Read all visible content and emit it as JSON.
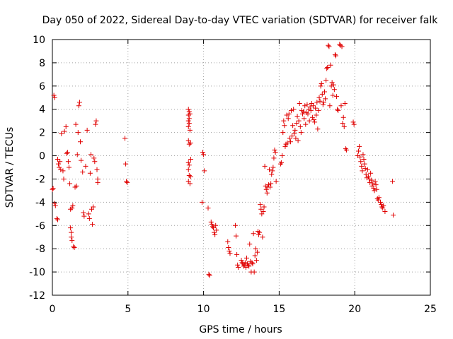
{
  "chart_data": {
    "type": "scatter",
    "title": "Day 050 of 2022, Sidereal Day-to-day VTEC variation (SDTVAR) for receiver falk",
    "xlabel": "GPS time / hours",
    "ylabel": "SDTVAR / TECUs",
    "xlim": [
      0,
      25
    ],
    "ylim": [
      -12,
      10
    ],
    "xticks": [
      0,
      5,
      10,
      15,
      20,
      25
    ],
    "yticks": [
      -12,
      -10,
      -8,
      -6,
      -4,
      -2,
      0,
      2,
      4,
      6,
      8,
      10
    ],
    "grid": true,
    "marker": "plus",
    "color": "#e00000",
    "series": [
      {
        "name": "SDTVAR",
        "points": [
          [
            0.0,
            -2.9
          ],
          [
            0.05,
            -2.8
          ],
          [
            0.1,
            5.2
          ],
          [
            0.15,
            5.0
          ],
          [
            0.15,
            -4.1
          ],
          [
            0.2,
            -4.3
          ],
          [
            0.3,
            -5.4
          ],
          [
            0.35,
            -5.5
          ],
          [
            0.35,
            -0.3
          ],
          [
            0.4,
            -0.7
          ],
          [
            0.45,
            -1.0
          ],
          [
            0.5,
            -0.5
          ],
          [
            0.55,
            -1.2
          ],
          [
            0.6,
            1.9
          ],
          [
            0.7,
            -1.3
          ],
          [
            0.75,
            -2.0
          ],
          [
            0.8,
            2.1
          ],
          [
            0.9,
            2.5
          ],
          [
            0.95,
            0.2
          ],
          [
            1.0,
            0.3
          ],
          [
            1.05,
            -0.5
          ],
          [
            1.1,
            -1.0
          ],
          [
            1.15,
            -2.4
          ],
          [
            1.2,
            -4.6
          ],
          [
            1.2,
            -6.2
          ],
          [
            1.25,
            -6.6
          ],
          [
            1.25,
            -7.0
          ],
          [
            1.3,
            -7.3
          ],
          [
            1.3,
            -4.5
          ],
          [
            1.35,
            -4.3
          ],
          [
            1.4,
            -7.8
          ],
          [
            1.45,
            -7.9
          ],
          [
            1.5,
            -2.7
          ],
          [
            1.55,
            2.7
          ],
          [
            1.6,
            -2.6
          ],
          [
            1.65,
            0.1
          ],
          [
            1.7,
            2.0
          ],
          [
            1.75,
            4.3
          ],
          [
            1.8,
            4.6
          ],
          [
            1.85,
            1.2
          ],
          [
            1.9,
            -0.4
          ],
          [
            2.0,
            -1.4
          ],
          [
            2.05,
            -4.9
          ],
          [
            2.1,
            -5.2
          ],
          [
            2.2,
            -0.9
          ],
          [
            2.3,
            2.2
          ],
          [
            2.4,
            -5.0
          ],
          [
            2.45,
            -5.4
          ],
          [
            2.5,
            -1.5
          ],
          [
            2.55,
            0.1
          ],
          [
            2.6,
            -4.6
          ],
          [
            2.65,
            -5.9
          ],
          [
            2.7,
            -4.4
          ],
          [
            2.75,
            -0.2
          ],
          [
            2.8,
            -0.5
          ],
          [
            2.85,
            2.7
          ],
          [
            2.9,
            3.0
          ],
          [
            2.95,
            -1.2
          ],
          [
            3.0,
            -2.3
          ],
          [
            3.0,
            -2.0
          ],
          [
            4.8,
            1.5
          ],
          [
            4.85,
            -0.7
          ],
          [
            4.9,
            -2.2
          ],
          [
            4.95,
            -2.3
          ],
          [
            9.0,
            4.0
          ],
          [
            9.0,
            3.5
          ],
          [
            9.0,
            3.0
          ],
          [
            9.0,
            2.5
          ],
          [
            9.0,
            1.3
          ],
          [
            9.0,
            -0.6
          ],
          [
            9.0,
            -1.2
          ],
          [
            9.0,
            -2.2
          ],
          [
            9.05,
            3.8
          ],
          [
            9.05,
            3.2
          ],
          [
            9.05,
            2.8
          ],
          [
            9.05,
            1.0
          ],
          [
            9.05,
            -0.8
          ],
          [
            9.05,
            -1.7
          ],
          [
            9.1,
            3.6
          ],
          [
            9.1,
            2.2
          ],
          [
            9.1,
            -2.4
          ],
          [
            9.15,
            1.1
          ],
          [
            9.15,
            -0.3
          ],
          [
            9.15,
            -1.8
          ],
          [
            9.9,
            -4.0
          ],
          [
            9.95,
            0.3
          ],
          [
            10.0,
            0.1
          ],
          [
            10.05,
            -1.3
          ],
          [
            10.3,
            -4.5
          ],
          [
            10.35,
            -10.2
          ],
          [
            10.4,
            -10.3
          ],
          [
            10.5,
            -5.7
          ],
          [
            10.55,
            -5.9
          ],
          [
            10.6,
            -6.1
          ],
          [
            10.65,
            -6.2
          ],
          [
            10.7,
            -6.6
          ],
          [
            10.75,
            -6.8
          ],
          [
            10.8,
            -6.0
          ],
          [
            10.85,
            -6.4
          ],
          [
            11.6,
            -7.4
          ],
          [
            11.65,
            -7.9
          ],
          [
            11.7,
            -8.2
          ],
          [
            11.75,
            -8.4
          ],
          [
            12.1,
            -6.0
          ],
          [
            12.15,
            -6.9
          ],
          [
            12.2,
            -8.5
          ],
          [
            12.25,
            -9.4
          ],
          [
            12.3,
            -9.6
          ],
          [
            12.5,
            -9.0
          ],
          [
            12.55,
            -9.2
          ],
          [
            12.6,
            -9.3
          ],
          [
            12.65,
            -9.5
          ],
          [
            12.7,
            -9.4
          ],
          [
            12.75,
            -9.2
          ],
          [
            12.8,
            -9.6
          ],
          [
            12.85,
            -8.8
          ],
          [
            12.9,
            -9.3
          ],
          [
            12.95,
            -9.4
          ],
          [
            13.0,
            -9.5
          ],
          [
            13.05,
            -7.6
          ],
          [
            13.1,
            -9.1
          ],
          [
            13.15,
            -10.0
          ],
          [
            13.2,
            -9.2
          ],
          [
            13.25,
            -9.3
          ],
          [
            13.3,
            -6.7
          ],
          [
            13.35,
            -10.0
          ],
          [
            13.4,
            -8.6
          ],
          [
            13.45,
            -8.0
          ],
          [
            13.5,
            -9.0
          ],
          [
            13.55,
            -8.3
          ],
          [
            13.6,
            -6.5
          ],
          [
            13.65,
            -6.8
          ],
          [
            13.7,
            -6.6
          ],
          [
            13.75,
            -4.2
          ],
          [
            13.8,
            -4.6
          ],
          [
            13.85,
            -5.0
          ],
          [
            13.9,
            -7.0
          ],
          [
            13.95,
            -4.8
          ],
          [
            14.0,
            -4.4
          ],
          [
            14.05,
            -0.9
          ],
          [
            14.1,
            -2.6
          ],
          [
            14.15,
            -2.9
          ],
          [
            14.2,
            -3.2
          ],
          [
            14.25,
            -2.7
          ],
          [
            14.3,
            -2.5
          ],
          [
            14.35,
            -1.2
          ],
          [
            14.4,
            -2.7
          ],
          [
            14.45,
            -2.4
          ],
          [
            14.5,
            -1.6
          ],
          [
            14.55,
            -1.3
          ],
          [
            14.6,
            -1.0
          ],
          [
            14.65,
            -0.2
          ],
          [
            14.7,
            0.5
          ],
          [
            14.75,
            0.3
          ],
          [
            14.8,
            -2.2
          ],
          [
            15.1,
            -0.7
          ],
          [
            15.15,
            -0.6
          ],
          [
            15.2,
            0.0
          ],
          [
            15.25,
            2.0
          ],
          [
            15.3,
            3.0
          ],
          [
            15.35,
            2.6
          ],
          [
            15.4,
            0.8
          ],
          [
            15.45,
            1.0
          ],
          [
            15.5,
            3.5
          ],
          [
            15.55,
            1.1
          ],
          [
            15.6,
            3.2
          ],
          [
            15.65,
            3.6
          ],
          [
            15.7,
            1.5
          ],
          [
            15.75,
            1.2
          ],
          [
            15.8,
            3.9
          ],
          [
            15.85,
            1.7
          ],
          [
            15.9,
            2.6
          ],
          [
            15.95,
            4.0
          ],
          [
            16.0,
            1.9
          ],
          [
            16.05,
            2.2
          ],
          [
            16.1,
            1.5
          ],
          [
            16.15,
            2.8
          ],
          [
            16.2,
            3.4
          ],
          [
            16.25,
            1.3
          ],
          [
            16.3,
            3.0
          ],
          [
            16.35,
            4.5
          ],
          [
            16.4,
            2.5
          ],
          [
            16.45,
            2.0
          ],
          [
            16.5,
            3.9
          ],
          [
            16.55,
            3.6
          ],
          [
            16.6,
            3.8
          ],
          [
            16.65,
            3.2
          ],
          [
            16.7,
            4.3
          ],
          [
            16.75,
            2.7
          ],
          [
            16.8,
            3.7
          ],
          [
            16.85,
            4.4
          ],
          [
            16.9,
            3.6
          ],
          [
            16.95,
            4.0
          ],
          [
            17.0,
            3.0
          ],
          [
            17.05,
            4.2
          ],
          [
            17.1,
            3.9
          ],
          [
            17.15,
            4.5
          ],
          [
            17.2,
            3.3
          ],
          [
            17.25,
            4.3
          ],
          [
            17.3,
            3.1
          ],
          [
            17.35,
            2.9
          ],
          [
            17.4,
            4.1
          ],
          [
            17.45,
            3.5
          ],
          [
            17.5,
            4.6
          ],
          [
            17.55,
            2.3
          ],
          [
            17.6,
            3.9
          ],
          [
            17.65,
            5.0
          ],
          [
            17.7,
            4.7
          ],
          [
            17.75,
            6.0
          ],
          [
            17.8,
            6.2
          ],
          [
            17.85,
            5.3
          ],
          [
            17.9,
            4.4
          ],
          [
            17.95,
            4.6
          ],
          [
            18.0,
            5.5
          ],
          [
            18.05,
            4.9
          ],
          [
            18.1,
            6.5
          ],
          [
            18.15,
            7.5
          ],
          [
            18.2,
            7.6
          ],
          [
            18.25,
            9.5
          ],
          [
            18.3,
            9.4
          ],
          [
            18.35,
            4.3
          ],
          [
            18.4,
            7.8
          ],
          [
            18.45,
            6.0
          ],
          [
            18.5,
            6.3
          ],
          [
            18.55,
            5.2
          ],
          [
            18.6,
            6.1
          ],
          [
            18.65,
            5.7
          ],
          [
            18.7,
            8.7
          ],
          [
            18.75,
            8.6
          ],
          [
            18.8,
            5.1
          ],
          [
            18.85,
            4.0
          ],
          [
            18.9,
            3.9
          ],
          [
            19.0,
            9.6
          ],
          [
            19.05,
            9.5
          ],
          [
            19.1,
            4.3
          ],
          [
            19.15,
            9.4
          ],
          [
            19.2,
            2.8
          ],
          [
            19.25,
            3.3
          ],
          [
            19.3,
            2.5
          ],
          [
            19.35,
            4.5
          ],
          [
            19.4,
            0.6
          ],
          [
            19.45,
            0.5
          ],
          [
            19.9,
            2.9
          ],
          [
            19.95,
            2.7
          ],
          [
            20.2,
            0.0
          ],
          [
            20.25,
            0.4
          ],
          [
            20.3,
            0.8
          ],
          [
            20.35,
            -0.1
          ],
          [
            20.4,
            -0.5
          ],
          [
            20.45,
            -0.9
          ],
          [
            20.5,
            -1.3
          ],
          [
            20.55,
            0.1
          ],
          [
            20.6,
            -0.3
          ],
          [
            20.65,
            -0.7
          ],
          [
            20.7,
            -1.1
          ],
          [
            20.75,
            -1.6
          ],
          [
            20.8,
            -1.9
          ],
          [
            20.85,
            -1.2
          ],
          [
            20.9,
            -1.8
          ],
          [
            20.95,
            -2.0
          ],
          [
            21.0,
            -2.3
          ],
          [
            21.05,
            -1.5
          ],
          [
            21.1,
            -2.1
          ],
          [
            21.15,
            -2.6
          ],
          [
            21.2,
            -2.4
          ],
          [
            21.25,
            -2.8
          ],
          [
            21.3,
            -3.0
          ],
          [
            21.35,
            -2.2
          ],
          [
            21.4,
            -2.5
          ],
          [
            21.45,
            -2.9
          ],
          [
            21.5,
            -3.7
          ],
          [
            21.55,
            -3.8
          ],
          [
            21.6,
            -3.6
          ],
          [
            21.7,
            -4.0
          ],
          [
            21.75,
            -4.2
          ],
          [
            21.8,
            -4.4
          ],
          [
            21.85,
            -4.5
          ],
          [
            21.9,
            -4.3
          ],
          [
            22.0,
            -4.8
          ],
          [
            22.5,
            -2.2
          ],
          [
            22.55,
            -5.1
          ]
        ]
      }
    ]
  }
}
